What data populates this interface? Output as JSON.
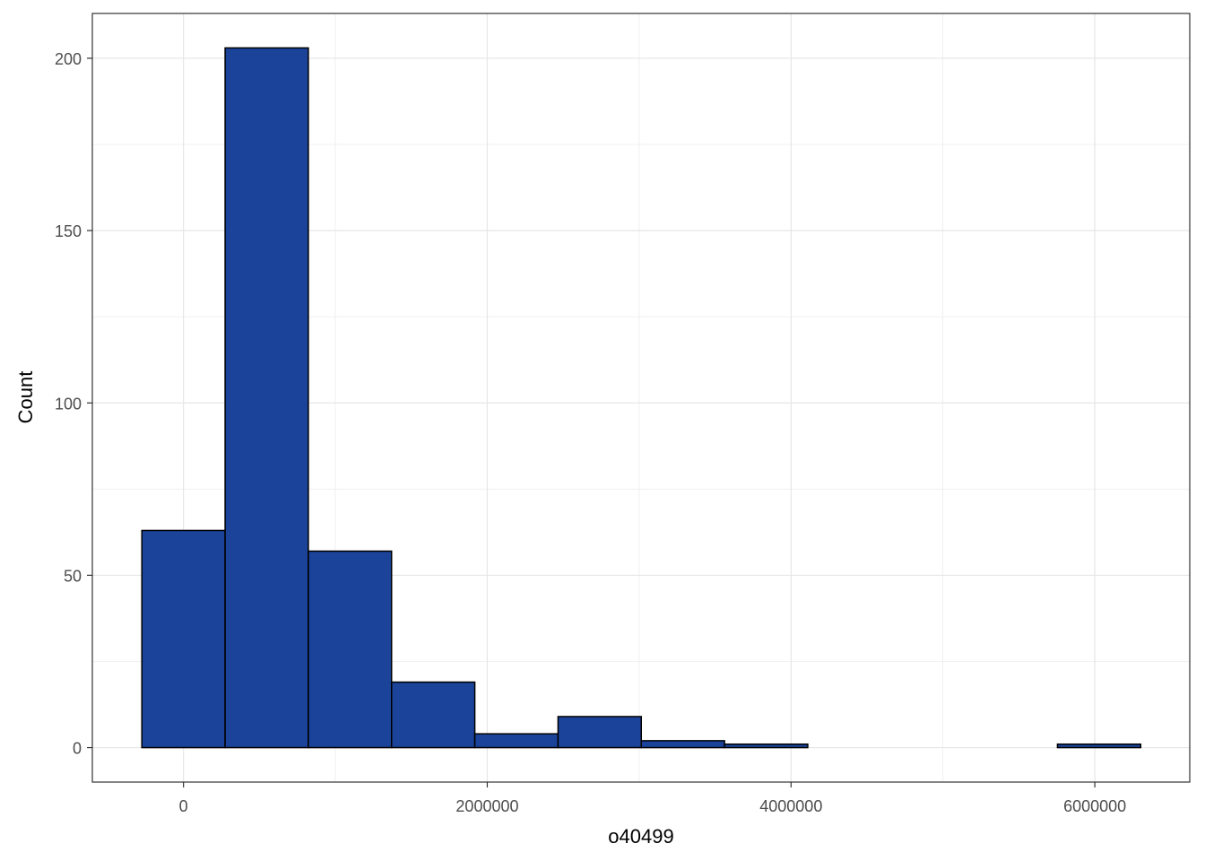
{
  "chart_data": {
    "type": "histogram",
    "x_label": "o40499",
    "y_label": "Count",
    "bins": [
      -274000,
      274000,
      822000,
      1370000,
      1918000,
      2466000,
      3014000,
      3562000,
      4110000,
      4658000,
      5206000,
      5754000,
      6302000
    ],
    "values": [
      63,
      203,
      57,
      19,
      4,
      9,
      2,
      1,
      0,
      0,
      0,
      1
    ],
    "color": "#1a4399",
    "xlim": [
      -600000,
      6625000
    ],
    "ylim": [
      -10,
      213
    ],
    "xticks": [
      0,
      2000000,
      4000000,
      6000000
    ],
    "yticks": [
      0,
      50,
      100,
      150,
      200
    ],
    "grid": true
  }
}
